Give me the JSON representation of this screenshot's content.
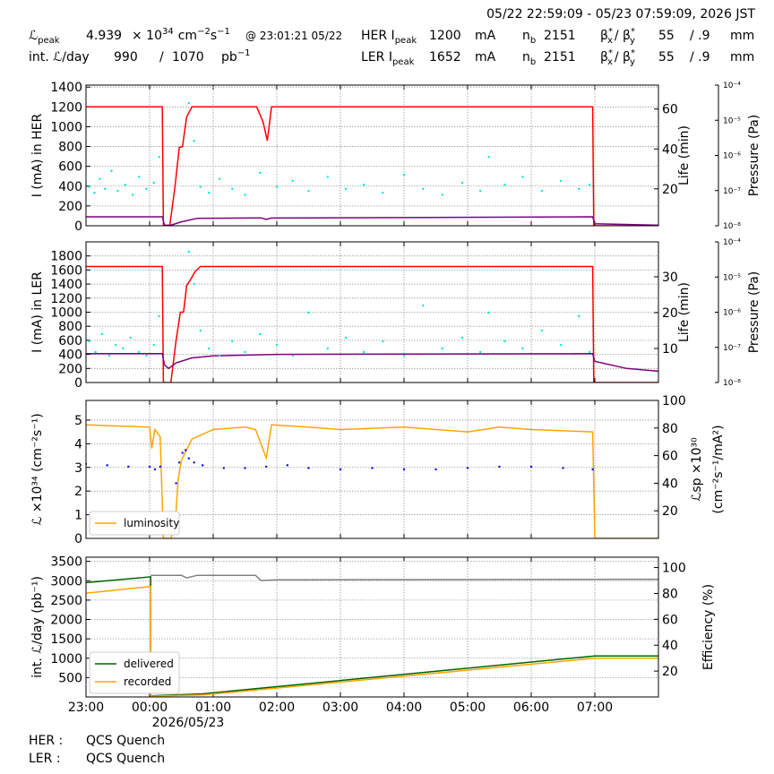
{
  "header": {
    "period": "05/22 22:59:09 - 05/23 07:59:09, 2026 JST",
    "row1": [
      "ℒ",
      "peak",
      "4.939",
      "× 10",
      "34",
      "cm",
      "−2",
      "s",
      "−1",
      "@ 23:01:21 05/22",
      "HER I",
      "peak",
      "1200",
      "mA",
      "n",
      "b",
      "2151",
      "β",
      "*",
      "x",
      "/ β",
      "*",
      "y",
      "55",
      "/ .9",
      "mm"
    ],
    "row2": [
      "int. ℒ/day",
      "990",
      "/",
      "1070",
      "pb",
      "−1",
      "LER I",
      "peak",
      "1652",
      "mA",
      "n",
      "b",
      "2151",
      "β",
      "*",
      "x",
      "/ β",
      "*",
      "y",
      "55",
      "/ .9",
      "mm"
    ]
  },
  "footer": {
    "rows": [
      [
        "HER :",
        "QCS Quench"
      ],
      [
        "LER :",
        "QCS Quench"
      ]
    ]
  },
  "chart_data": [
    {
      "type": "line",
      "ylabel": "I (mA) in HER",
      "y2label": [
        "Life (min)"
      ],
      "y3label": "Pressure (Pa)",
      "grid": true,
      "xlim": [
        "2026-05-22 23:00",
        "2026-05-23 08:00"
      ],
      "xticks": [
        "2026-05-22 23:00",
        "2026-05-23 00:00",
        "2026-05-23 01:00",
        "2026-05-23 02:00",
        "2026-05-23 03:00",
        "2026-05-23 04:00",
        "2026-05-23 05:00",
        "2026-05-23 06:00",
        "2026-05-23 07:00"
      ],
      "ylim": [
        0,
        1420
      ],
      "yticks": [
        0,
        200,
        400,
        600,
        800,
        1000,
        1200,
        1400
      ],
      "y2lim": [
        1.5,
        72
      ],
      "y2ticks": [
        20,
        40,
        60
      ],
      "y3scale": "log",
      "y3lim": [
        1e-08,
        0.0001
      ],
      "y3ticks": [
        {
          "value": 1e-08,
          "label": "10⁻⁸"
        },
        {
          "value": 1e-07,
          "label": "10⁻⁷"
        },
        {
          "value": 1e-06,
          "label": "10⁻⁶"
        },
        {
          "value": 1e-05,
          "label": "10⁻⁵"
        },
        {
          "value": 0.0001,
          "label": "10⁻⁴"
        }
      ],
      "series": [
        {
          "color": "#ff0000",
          "mode": "line",
          "x": [
            "2026-05-22 23:00",
            "2026-05-23 00:12",
            "2026-05-23 00:13",
            "2026-05-23 00:19",
            "2026-05-23 00:24",
            "2026-05-23 00:28",
            "2026-05-23 00:31",
            "2026-05-23 00:35",
            "2026-05-23 00:40",
            "2026-05-23 01:41",
            "2026-05-23 01:47",
            "2026-05-23 01:51",
            "2026-05-23 01:55",
            "2026-05-23 06:58",
            "2026-05-23 06:59",
            "2026-05-23 08:00"
          ],
          "values": [
            1200,
            1200,
            0,
            0,
            400,
            790,
            800,
            1100,
            1200,
            1200,
            1050,
            860,
            1200,
            1200,
            0,
            0
          ]
        },
        {
          "color": "#800080",
          "mode": "line",
          "x": [
            "2026-05-22 23:00",
            "2026-05-23 00:12",
            "2026-05-23 00:14",
            "2026-05-23 00:20",
            "2026-05-23 00:30",
            "2026-05-23 00:45",
            "2026-05-23 01:45",
            "2026-05-23 01:50",
            "2026-05-23 01:55",
            "2026-05-23 06:58",
            "2026-05-23 07:00",
            "2026-05-23 08:00"
          ],
          "values": [
            90,
            90,
            5,
            5,
            40,
            75,
            80,
            65,
            78,
            90,
            20,
            5
          ]
        },
        {
          "color": "#00e5e5",
          "mode": "points",
          "axis": "y2",
          "x": [
            "2026-05-22 23:03",
            "2026-05-22 23:08",
            "2026-05-22 23:13",
            "2026-05-22 23:18",
            "2026-05-22 23:24",
            "2026-05-22 23:30",
            "2026-05-22 23:37",
            "2026-05-22 23:44",
            "2026-05-22 23:50",
            "2026-05-22 23:57",
            "2026-05-23 00:04",
            "2026-05-23 00:09",
            "2026-05-23 00:37",
            "2026-05-23 00:42",
            "2026-05-23 00:48",
            "2026-05-23 00:56",
            "2026-05-23 01:06",
            "2026-05-23 01:18",
            "2026-05-23 01:30",
            "2026-05-23 01:44",
            "2026-05-23 02:00",
            "2026-05-23 02:15",
            "2026-05-23 02:30",
            "2026-05-23 02:48",
            "2026-05-23 03:05",
            "2026-05-23 03:22",
            "2026-05-23 03:40",
            "2026-05-23 04:00",
            "2026-05-23 04:18",
            "2026-05-23 04:36",
            "2026-05-23 04:55",
            "2026-05-23 05:12",
            "2026-05-23 05:20",
            "2026-05-23 05:35",
            "2026-05-23 05:52",
            "2026-05-23 06:10",
            "2026-05-23 06:28",
            "2026-05-23 06:45",
            "2026-05-23 06:55"
          ],
          "values": [
            21,
            18,
            25,
            20,
            29,
            19,
            22,
            17,
            26,
            20,
            23,
            36,
            63,
            44,
            21,
            18,
            25,
            20,
            17,
            28,
            21,
            24,
            19,
            26,
            20,
            22,
            18,
            27,
            20,
            17,
            23,
            19,
            36,
            22,
            26,
            19,
            24,
            20,
            22
          ]
        }
      ]
    },
    {
      "type": "line",
      "ylabel": "I (mA) in LER",
      "y2label": [
        "Life (min)"
      ],
      "y3label": "Pressure (Pa)",
      "grid": true,
      "xlim": [
        "2026-05-22 23:00",
        "2026-05-23 08:00"
      ],
      "xticks": [
        "2026-05-22 23:00",
        "2026-05-23 00:00",
        "2026-05-23 01:00",
        "2026-05-23 02:00",
        "2026-05-23 03:00",
        "2026-05-23 04:00",
        "2026-05-23 05:00",
        "2026-05-23 06:00",
        "2026-05-23 07:00"
      ],
      "ylim": [
        0,
        2000
      ],
      "yticks": [
        0,
        200,
        400,
        600,
        800,
        1000,
        1200,
        1400,
        1600,
        1800
      ],
      "y2lim": [
        0.5,
        39.75
      ],
      "y2ticks": [
        10,
        20,
        30
      ],
      "y3scale": "log",
      "y3lim": [
        1e-08,
        0.0001
      ],
      "y3ticks": [
        {
          "value": 1e-08,
          "label": "10⁻⁸"
        },
        {
          "value": 1e-07,
          "label": "10⁻⁷"
        },
        {
          "value": 1e-06,
          "label": "10⁻⁶"
        },
        {
          "value": 1e-05,
          "label": "10⁻⁵"
        },
        {
          "value": 0.0001,
          "label": "10⁻⁴"
        }
      ],
      "series": [
        {
          "color": "#ff0000",
          "mode": "line",
          "x": [
            "2026-05-22 23:00",
            "2026-05-23 00:12",
            "2026-05-23 00:13",
            "2026-05-23 00:20",
            "2026-05-23 00:25",
            "2026-05-23 00:29",
            "2026-05-23 00:32",
            "2026-05-23 00:35",
            "2026-05-23 00:38",
            "2026-05-23 00:43",
            "2026-05-23 00:48",
            "2026-05-23 06:58",
            "2026-05-23 06:59",
            "2026-05-23 08:00"
          ],
          "values": [
            1650,
            1650,
            0,
            0,
            600,
            1000,
            1000,
            1380,
            1450,
            1580,
            1650,
            1650,
            0,
            0
          ]
        },
        {
          "color": "#800080",
          "mode": "line",
          "x": [
            "2026-05-22 23:00",
            "2026-05-23 00:12",
            "2026-05-23 00:14",
            "2026-05-23 00:18",
            "2026-05-23 00:25",
            "2026-05-23 00:40",
            "2026-05-23 01:00",
            "2026-05-23 02:00",
            "2026-05-23 06:58",
            "2026-05-23 07:00",
            "2026-05-23 07:30",
            "2026-05-23 08:00"
          ],
          "values": [
            410,
            410,
            250,
            200,
            280,
            350,
            380,
            400,
            410,
            300,
            200,
            160
          ]
        },
        {
          "color": "#00e5e5",
          "mode": "points",
          "axis": "y2",
          "x": [
            "2026-05-22 23:03",
            "2026-05-22 23:09",
            "2026-05-22 23:15",
            "2026-05-22 23:22",
            "2026-05-22 23:28",
            "2026-05-22 23:35",
            "2026-05-22 23:42",
            "2026-05-22 23:50",
            "2026-05-22 23:57",
            "2026-05-23 00:04",
            "2026-05-23 00:09",
            "2026-05-23 00:37",
            "2026-05-23 00:42",
            "2026-05-23 00:48",
            "2026-05-23 00:56",
            "2026-05-23 01:06",
            "2026-05-23 01:18",
            "2026-05-23 01:30",
            "2026-05-23 01:44",
            "2026-05-23 02:00",
            "2026-05-23 02:15",
            "2026-05-23 02:30",
            "2026-05-23 02:48",
            "2026-05-23 03:05",
            "2026-05-23 03:22",
            "2026-05-23 03:40",
            "2026-05-23 04:00",
            "2026-05-23 04:18",
            "2026-05-23 04:36",
            "2026-05-23 04:55",
            "2026-05-23 05:12",
            "2026-05-23 05:20",
            "2026-05-23 05:35",
            "2026-05-23 05:52",
            "2026-05-23 06:10",
            "2026-05-23 06:28",
            "2026-05-23 06:45",
            "2026-05-23 06:55"
          ],
          "values": [
            12,
            9,
            14,
            8,
            11,
            10,
            13,
            9,
            8,
            11,
            19,
            37,
            28,
            15,
            10,
            8,
            12,
            9,
            14,
            11,
            8,
            20,
            10,
            13,
            9,
            12,
            8,
            22,
            10,
            13,
            9,
            20,
            12,
            10,
            15,
            11,
            19,
            9
          ]
        }
      ]
    },
    {
      "type": "line",
      "ylabel": "ℒ ×10³⁴ (cm⁻²s⁻¹)",
      "y2label": [
        "ℒsp ×10³⁰",
        "(cm⁻²s⁻¹/mA²)"
      ],
      "grid": true,
      "legend": "lower left",
      "xlim": [
        "2026-05-22 23:00",
        "2026-05-23 08:00"
      ],
      "xticks": [
        "2026-05-22 23:00",
        "2026-05-23 00:00",
        "2026-05-23 01:00",
        "2026-05-23 02:00",
        "2026-05-23 03:00",
        "2026-05-23 04:00",
        "2026-05-23 05:00",
        "2026-05-23 06:00",
        "2026-05-23 07:00"
      ],
      "ylim": [
        0,
        5.83
      ],
      "yticks": [
        0,
        1,
        2,
        3,
        4,
        5
      ],
      "y2lim": [
        0,
        100
      ],
      "y2ticks": [
        20,
        40,
        60,
        80,
        100
      ],
      "series": [
        {
          "name": "luminosity",
          "color": "#ffa500",
          "mode": "line",
          "x": [
            "2026-05-22 23:00",
            "2026-05-22 23:30",
            "2026-05-23 00:00",
            "2026-05-23 00:02",
            "2026-05-23 00:05",
            "2026-05-23 00:10",
            "2026-05-23 00:13",
            "2026-05-23 00:20",
            "2026-05-23 00:24",
            "2026-05-23 00:27",
            "2026-05-23 00:30",
            "2026-05-23 00:40",
            "2026-05-23 01:00",
            "2026-05-23 01:30",
            "2026-05-23 01:40",
            "2026-05-23 01:50",
            "2026-05-23 01:55",
            "2026-05-23 02:30",
            "2026-05-23 03:00",
            "2026-05-23 04:00",
            "2026-05-23 05:00",
            "2026-05-23 05:30",
            "2026-05-23 06:00",
            "2026-05-23 06:58",
            "2026-05-23 07:00",
            "2026-05-23 08:00"
          ],
          "values": [
            4.8,
            4.75,
            4.7,
            3.8,
            4.6,
            4.3,
            0,
            0,
            0.5,
            2.5,
            3.3,
            4.2,
            4.6,
            4.7,
            4.6,
            3.4,
            4.8,
            4.7,
            4.6,
            4.7,
            4.5,
            4.7,
            4.6,
            4.5,
            0,
            0
          ]
        },
        {
          "color": "#0000ff",
          "mode": "points",
          "axis": "y2",
          "x": [
            "2026-05-22 23:00",
            "2026-05-22 23:20",
            "2026-05-22 23:40",
            "2026-05-23 00:00",
            "2026-05-23 00:05",
            "2026-05-23 00:10",
            "2026-05-23 00:25",
            "2026-05-23 00:28",
            "2026-05-23 00:31",
            "2026-05-23 00:34",
            "2026-05-23 00:37",
            "2026-05-23 00:42",
            "2026-05-23 00:50",
            "2026-05-23 01:10",
            "2026-05-23 01:30",
            "2026-05-23 01:50",
            "2026-05-23 02:10",
            "2026-05-23 02:30",
            "2026-05-23 03:00",
            "2026-05-23 03:30",
            "2026-05-23 04:00",
            "2026-05-23 04:30",
            "2026-05-23 05:00",
            "2026-05-23 05:30",
            "2026-05-23 06:00",
            "2026-05-23 06:30",
            "2026-05-23 06:58"
          ],
          "values": [
            54,
            53,
            52,
            52,
            50,
            52,
            40,
            55,
            62,
            64,
            58,
            55,
            53,
            51,
            51,
            52,
            53,
            51,
            50,
            51,
            50,
            50,
            51,
            52,
            52,
            51,
            50
          ]
        }
      ]
    },
    {
      "type": "line",
      "ylabel": "int. ℒ/day (pb⁻¹)",
      "y2label": [
        "Efficiency (%)"
      ],
      "grid": true,
      "legend": "lower left",
      "xlim": [
        "2026-05-22 23:00",
        "2026-05-23 08:00"
      ],
      "xticks": [
        {
          "value": "2026-05-22 23:00",
          "label": "23:00"
        },
        {
          "value": "2026-05-23 00:00",
          "label": "00:00"
        },
        {
          "value": "2026-05-23 01:00",
          "label": "01:00"
        },
        {
          "value": "2026-05-23 02:00",
          "label": "02:00"
        },
        {
          "value": "2026-05-23 03:00",
          "label": "03:00"
        },
        {
          "value": "2026-05-23 04:00",
          "label": "04:00"
        },
        {
          "value": "2026-05-23 05:00",
          "label": "05:00"
        },
        {
          "value": "2026-05-23 06:00",
          "label": "06:00"
        },
        {
          "value": "2026-05-23 07:00",
          "label": "07:00"
        }
      ],
      "xdate_label": "2026/05/23",
      "ylim": [
        0,
        3607
      ],
      "yticks": [
        500,
        1000,
        1500,
        2000,
        2500,
        3000,
        3500
      ],
      "y2lim": [
        0,
        108
      ],
      "y2ticks": [
        20,
        40,
        60,
        80,
        100
      ],
      "series": [
        {
          "name": "delivered",
          "color": "#006400",
          "mode": "line",
          "x": [
            "2026-05-22 23:00",
            "2026-05-23 00:01",
            "2026-05-23 00:01",
            "2026-05-23 00:50",
            "2026-05-23 07:00",
            "2026-05-23 08:00"
          ],
          "values": [
            2950,
            3100,
            30,
            80,
            1060,
            1060
          ]
        },
        {
          "name": "recorded",
          "color": "#ffa500",
          "mode": "line",
          "x": [
            "2026-05-22 23:00",
            "2026-05-23 00:01",
            "2026-05-23 00:01",
            "2026-05-23 00:50",
            "2026-05-23 07:00",
            "2026-05-23 08:00"
          ],
          "values": [
            2680,
            2850,
            20,
            50,
            1000,
            1000
          ]
        },
        {
          "color": "#808080",
          "mode": "line",
          "axis": "y2",
          "x": [
            "2026-05-23 00:01",
            "2026-05-23 00:30",
            "2026-05-23 00:35",
            "2026-05-23 00:45",
            "2026-05-23 01:40",
            "2026-05-23 01:45",
            "2026-05-23 02:00",
            "2026-05-23 08:00"
          ],
          "values": [
            94,
            94,
            92,
            94,
            94,
            90,
            90.5,
            91
          ]
        }
      ]
    }
  ]
}
